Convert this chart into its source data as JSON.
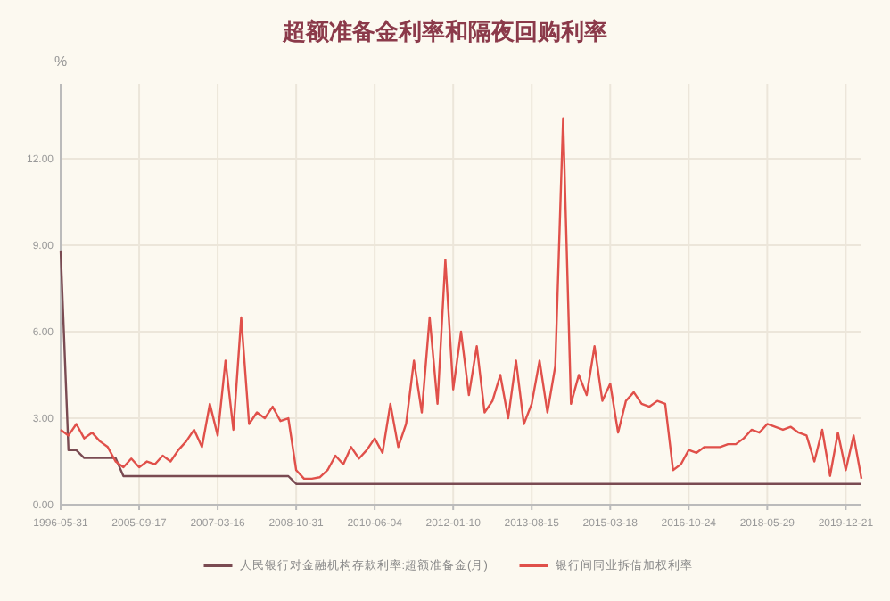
{
  "chart_data": {
    "type": "line",
    "title": "超额准备金利率和隔夜回购利率",
    "ylabel": "%",
    "categories": [
      "1996-05-31",
      null,
      null,
      null,
      null,
      null,
      null,
      null,
      null,
      null,
      "2005-09-17",
      null,
      null,
      null,
      null,
      null,
      null,
      null,
      null,
      null,
      "2007-03-16",
      null,
      null,
      null,
      null,
      null,
      null,
      null,
      null,
      null,
      "2008-10-31",
      null,
      null,
      null,
      null,
      null,
      null,
      null,
      null,
      null,
      "2010-06-04",
      null,
      null,
      null,
      null,
      null,
      null,
      null,
      null,
      null,
      "2012-01-10",
      null,
      null,
      null,
      null,
      null,
      null,
      null,
      null,
      null,
      "2013-08-15",
      null,
      null,
      null,
      null,
      null,
      null,
      null,
      null,
      null,
      "2015-03-18",
      null,
      null,
      null,
      null,
      null,
      null,
      null,
      null,
      null,
      "2016-10-24",
      null,
      null,
      null,
      null,
      null,
      null,
      null,
      null,
      null,
      "2018-05-29",
      null,
      null,
      null,
      null,
      null,
      null,
      null,
      null,
      null,
      "2019-12-21",
      null,
      null
    ],
    "series": [
      {
        "name": "人民银行对金融机构存款利率:超额准备金(月)",
        "color": "#7a4b52",
        "values": [
          8.82,
          1.89,
          1.89,
          1.62,
          1.62,
          1.62,
          1.62,
          1.62,
          0.99,
          0.99,
          0.99,
          0.99,
          0.99,
          0.99,
          0.99,
          0.99,
          0.99,
          0.99,
          0.99,
          0.99,
          0.99,
          0.99,
          0.99,
          0.99,
          0.99,
          0.99,
          0.99,
          0.99,
          0.99,
          0.99,
          0.72,
          0.72,
          0.72,
          0.72,
          0.72,
          0.72,
          0.72,
          0.72,
          0.72,
          0.72,
          0.72,
          0.72,
          0.72,
          0.72,
          0.72,
          0.72,
          0.72,
          0.72,
          0.72,
          0.72,
          0.72,
          0.72,
          0.72,
          0.72,
          0.72,
          0.72,
          0.72,
          0.72,
          0.72,
          0.72,
          0.72,
          0.72,
          0.72,
          0.72,
          0.72,
          0.72,
          0.72,
          0.72,
          0.72,
          0.72,
          0.72,
          0.72,
          0.72,
          0.72,
          0.72,
          0.72,
          0.72,
          0.72,
          0.72,
          0.72,
          0.72,
          0.72,
          0.72,
          0.72,
          0.72,
          0.72,
          0.72,
          0.72,
          0.72,
          0.72,
          0.72,
          0.72,
          0.72,
          0.72,
          0.72,
          0.72,
          0.72,
          0.72,
          0.72,
          0.72,
          0.72,
          0.72,
          0.72
        ]
      },
      {
        "name": "银行间同业拆借加权利率",
        "color": "#e0504a",
        "values": [
          2.6,
          2.4,
          2.8,
          2.3,
          2.5,
          2.2,
          2.0,
          1.5,
          1.3,
          1.6,
          1.3,
          1.5,
          1.4,
          1.7,
          1.5,
          1.9,
          2.2,
          2.6,
          2.0,
          3.5,
          2.4,
          5.0,
          2.6,
          6.5,
          2.8,
          3.2,
          3.0,
          3.4,
          2.9,
          3.0,
          1.2,
          0.9,
          0.9,
          0.95,
          1.2,
          1.7,
          1.4,
          2.0,
          1.6,
          1.9,
          2.3,
          1.8,
          3.5,
          2.0,
          2.8,
          5.0,
          3.2,
          6.5,
          3.5,
          8.5,
          4.0,
          6.0,
          3.8,
          5.5,
          3.2,
          3.6,
          4.5,
          3.0,
          5.0,
          2.8,
          3.5,
          5.0,
          3.2,
          4.8,
          13.4,
          3.5,
          4.5,
          3.8,
          5.5,
          3.6,
          4.2,
          2.5,
          3.6,
          3.9,
          3.5,
          3.4,
          3.6,
          3.5,
          1.2,
          1.4,
          1.9,
          1.8,
          2.0,
          2.0,
          2.0,
          2.1,
          2.1,
          2.3,
          2.6,
          2.5,
          2.8,
          2.7,
          2.6,
          2.7,
          2.5,
          2.4,
          1.5,
          2.6,
          1.0,
          2.5,
          1.2,
          2.4,
          0.9
        ]
      }
    ],
    "ylim": [
      0,
      14.6
    ],
    "yticks": [
      {
        "value": 0,
        "label": "0.00"
      },
      {
        "value": 3,
        "label": "3.00"
      },
      {
        "value": 6,
        "label": "6.00"
      },
      {
        "value": 9,
        "label": "9.00"
      },
      {
        "value": 12,
        "label": "12.00"
      }
    ],
    "grid": true,
    "legend": "bottom",
    "line_style": "solid",
    "marker": "none"
  }
}
